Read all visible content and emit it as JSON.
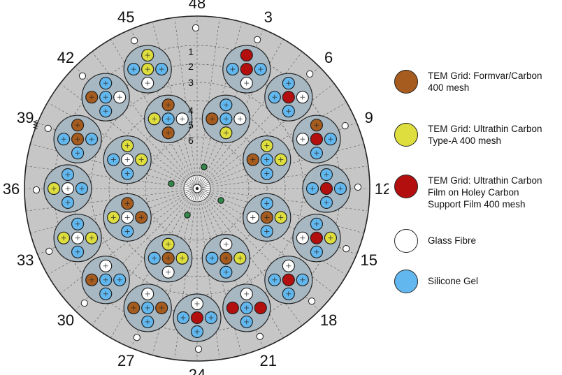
{
  "colors": {
    "formvar": "#a65c1e",
    "ultrathin": "#dede3e",
    "holey": "#b30f0f",
    "glass": "#ffffff",
    "silicone": "#62b8ee",
    "disk": "#c6c6c6",
    "circle_bg": "#a8b8c2",
    "hole": "#33884a"
  },
  "position_labels": [
    "3",
    "6",
    "9",
    "12",
    "15",
    "18",
    "21",
    "24",
    "27",
    "30",
    "33",
    "36",
    "39",
    "42",
    "45",
    "48"
  ],
  "ring_labels": [
    "1",
    "2",
    "3",
    "4",
    "5",
    "6"
  ],
  "legend": [
    {
      "label": "TEM Grid: Formvar/Carbon\n400 mesh",
      "color_key": "formvar",
      "icon": "brown-circle"
    },
    {
      "label": "TEM Grid: Ultrathin Carbon\nType-A 400 mesh",
      "color_key": "ultrathin",
      "icon": "yellow-circle"
    },
    {
      "label": "TEM Grid: Ultrathin Carbon\nFilm on Holey Carbon\nSupport Film 400 mesh",
      "color_key": "holey",
      "icon": "red-circle"
    },
    {
      "label": "Glass Fibre",
      "color_key": "glass",
      "icon": "white-circle"
    },
    {
      "label": "Silicone Gel",
      "color_key": "silicone",
      "icon": "blue-circle"
    }
  ],
  "outer_holders": [
    {
      "position": "3",
      "samples": [
        "holey",
        "silicone",
        "holey",
        "silicone",
        "glass"
      ]
    },
    {
      "position": "6",
      "samples": [
        "silicone",
        "silicone",
        "holey",
        "glass",
        "silicone"
      ]
    },
    {
      "position": "9",
      "samples": [
        "formvar",
        "glass",
        "holey",
        "silicone",
        "silicone"
      ]
    },
    {
      "position": "12",
      "samples": [
        "silicone",
        "silicone",
        "holey",
        "silicone",
        "silicone"
      ]
    },
    {
      "position": "15",
      "samples": [
        "silicone",
        "glass",
        "holey",
        "ultrathin",
        "silicone"
      ]
    },
    {
      "position": "18",
      "samples": [
        "glass",
        "silicone",
        "holey",
        "silicone",
        "silicone"
      ]
    },
    {
      "position": "21",
      "samples": [
        "glass",
        "holey",
        "silicone",
        "holey",
        "silicone"
      ]
    },
    {
      "position": "24",
      "samples": [
        "glass",
        "silicone",
        "holey",
        "silicone",
        "silicone"
      ]
    },
    {
      "position": "27",
      "samples": [
        "glass",
        "formvar",
        "silicone",
        "formvar",
        "silicone"
      ]
    },
    {
      "position": "30",
      "samples": [
        "glass",
        "formvar",
        "silicone",
        "silicone",
        "silicone"
      ]
    },
    {
      "position": "33",
      "samples": [
        "silicone",
        "ultrathin",
        "glass",
        "ultrathin",
        "silicone"
      ]
    },
    {
      "position": "36",
      "samples": [
        "silicone",
        "ultrathin",
        "glass",
        "silicone",
        "silicone"
      ]
    },
    {
      "position": "39",
      "samples": [
        "formvar",
        "silicone",
        "formvar",
        "silicone",
        "silicone"
      ]
    },
    {
      "position": "42",
      "samples": [
        "silicone",
        "formvar",
        "silicone",
        "glass",
        "silicone"
      ]
    },
    {
      "position": "45",
      "samples": [
        "ultrathin",
        "silicone",
        "ultrathin",
        "silicone",
        "glass"
      ]
    }
  ],
  "inner_holders": [
    {
      "samples": [
        "silicone",
        "formvar",
        "silicone",
        "glass",
        "ultrathin"
      ]
    },
    {
      "samples": [
        "ultrathin",
        "formvar",
        "silicone",
        "ultrathin",
        "silicone"
      ]
    },
    {
      "samples": [
        "silicone",
        "glass",
        "formvar",
        "ultrathin",
        "silicone"
      ]
    },
    {
      "samples": [
        "glass",
        "silicone",
        "formvar",
        "ultrathin",
        "silicone"
      ]
    },
    {
      "samples": [
        "ultrathin",
        "silicone",
        "formvar",
        "ultrathin",
        "glass"
      ]
    },
    {
      "samples": [
        "formvar",
        "ultrathin",
        "glass",
        "formvar",
        "silicone"
      ]
    },
    {
      "samples": [
        "ultrathin",
        "silicone",
        "glass",
        "ultrathin",
        "silicone"
      ]
    },
    {
      "samples": [
        "formvar",
        "ultrathin",
        "silicone",
        "glass",
        "formvar"
      ]
    }
  ]
}
